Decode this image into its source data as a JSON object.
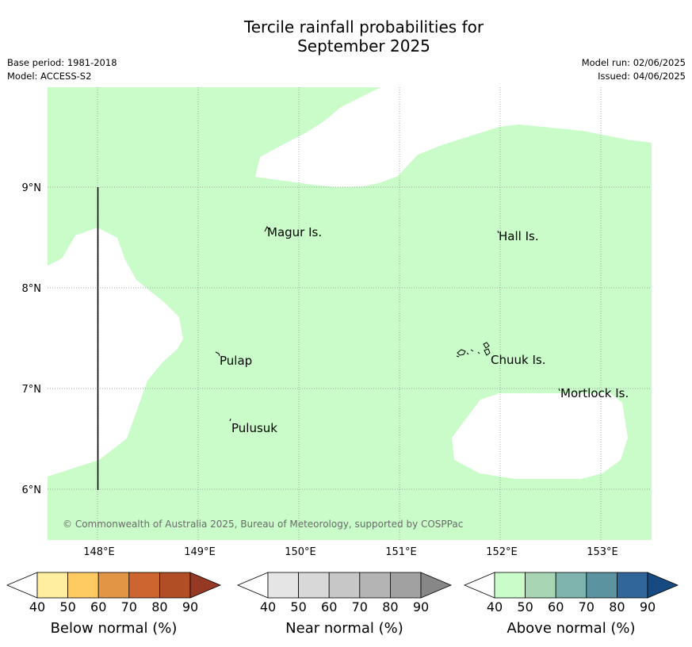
{
  "title_line1": "Tercile rainfall probabilities for",
  "title_line2": "September 2025",
  "base_period": "Base period: 1981-2018",
  "model": "Model: ACCESS-S2",
  "model_run": "Model run: 02/06/2025",
  "issued": "Issued: 04/06/2025",
  "map": {
    "lon_labels": [
      "148°E",
      "149°E",
      "150°E",
      "151°E",
      "152°E",
      "153°E"
    ],
    "lat_labels": [
      "9°N",
      "8°N",
      "7°N",
      "6°N"
    ],
    "places": [
      "Magur Is.",
      "Hall Is.",
      "Pulap",
      "Chuuk Is.",
      "Mortlock Is.",
      "Pulusuk"
    ],
    "copyright": "© Commonwealth of Australia 2025, Bureau of Meteorology, supported by COSPPac",
    "above_normal_color": "#c9fcc9"
  },
  "colorbars": [
    {
      "caption": "Below normal (%)",
      "ticks": [
        "40",
        "50",
        "60",
        "70",
        "80",
        "90"
      ],
      "colors": [
        "#ffffff",
        "#ffeda0",
        "#fecb63",
        "#e29545",
        "#cd6531",
        "#b14e26",
        "#953824"
      ]
    },
    {
      "caption": "Near normal (%)",
      "ticks": [
        "40",
        "50",
        "60",
        "70",
        "80",
        "90"
      ],
      "colors": [
        "#ffffff",
        "#e5e5e5",
        "#d8d8d8",
        "#c7c7c7",
        "#b4b4b4",
        "#a1a1a1",
        "#878787"
      ]
    },
    {
      "caption": "Above normal (%)",
      "ticks": [
        "40",
        "50",
        "60",
        "70",
        "80",
        "90"
      ],
      "colors": [
        "#ffffff",
        "#c9fcc9",
        "#a8d6b4",
        "#7fb3ae",
        "#5b93a0",
        "#306699",
        "#164a80"
      ]
    }
  ]
}
